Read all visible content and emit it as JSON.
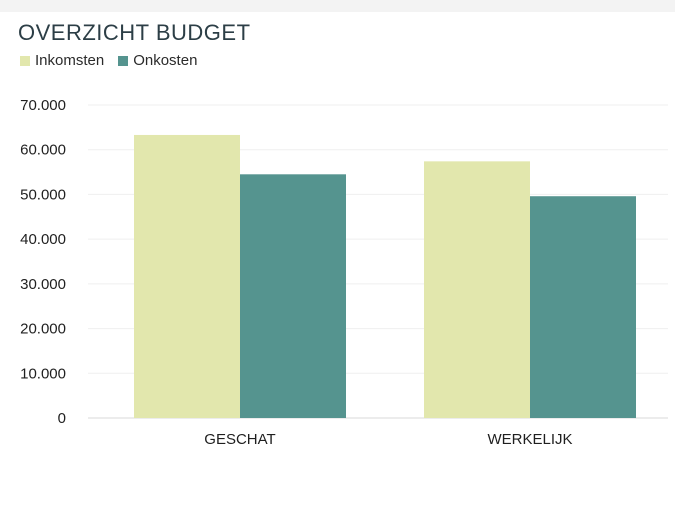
{
  "chart_data": {
    "type": "bar",
    "title": "OVERZICHT BUDGET",
    "categories": [
      "GESCHAT",
      "WERKELIJK"
    ],
    "series": [
      {
        "name": "Inkomsten",
        "values": [
          63300,
          57400
        ],
        "color": "#e2e7ad"
      },
      {
        "name": "Onkosten",
        "values": [
          54500,
          49600
        ],
        "color": "#55948f"
      }
    ],
    "ylim": [
      0,
      70000
    ],
    "yticks": [
      0,
      10000,
      20000,
      30000,
      40000,
      50000,
      60000,
      70000
    ],
    "ytick_labels": [
      "0",
      "10.000",
      "20.000",
      "30.000",
      "40.000",
      "50.000",
      "60.000",
      "70.000"
    ],
    "xlabel": "",
    "ylabel": "",
    "grid": true,
    "legend_position": "top-left"
  }
}
